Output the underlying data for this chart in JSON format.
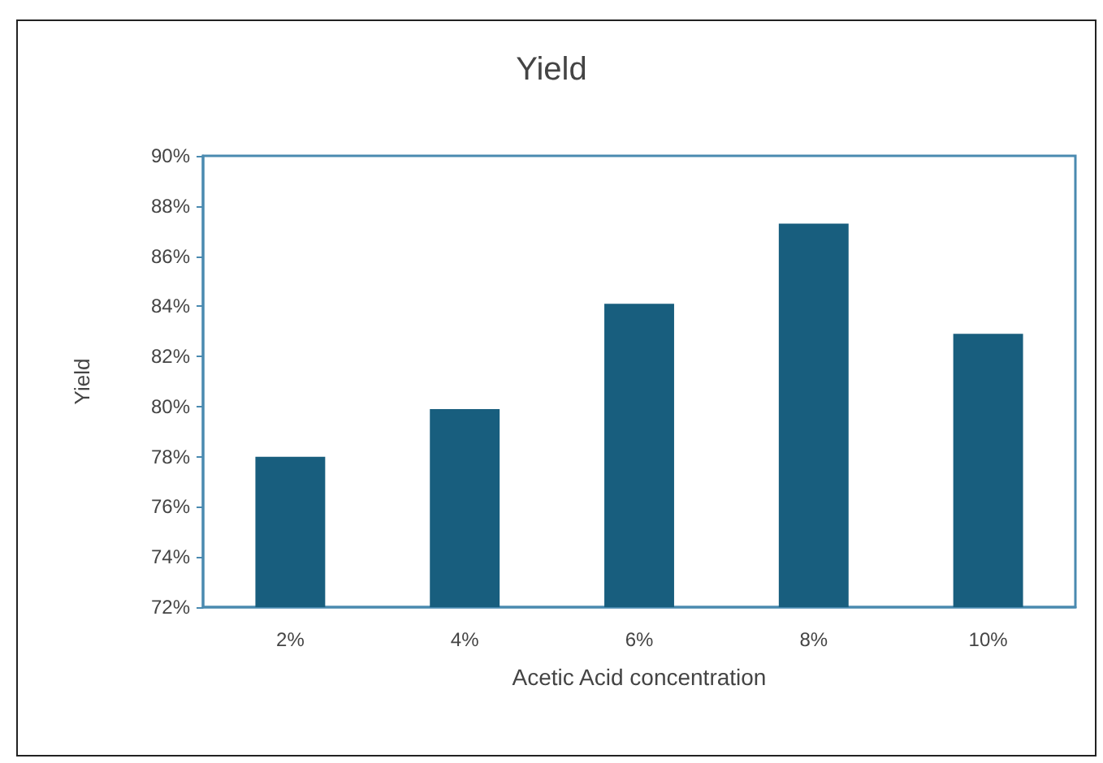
{
  "chart_data": {
    "type": "bar",
    "title": "Yield",
    "xlabel": "Acetic Acid concentration",
    "ylabel": "Yield",
    "categories": [
      "2%",
      "4%",
      "6%",
      "8%",
      "10%"
    ],
    "values": [
      78.0,
      79.9,
      84.1,
      87.3,
      82.9
    ],
    "color": "#185e7e",
    "ylim": [
      72,
      90
    ],
    "yticks": [
      {
        "value": 72,
        "label": "72%"
      },
      {
        "value": 74,
        "label": "74%"
      },
      {
        "value": 76,
        "label": "76%"
      },
      {
        "value": 78,
        "label": "78%"
      },
      {
        "value": 80,
        "label": "80%"
      },
      {
        "value": 82,
        "label": "82%"
      },
      {
        "value": 84,
        "label": "84%"
      },
      {
        "value": 86,
        "label": "86%"
      },
      {
        "value": 88,
        "label": "88%"
      },
      {
        "value": 90,
        "label": "90%"
      }
    ],
    "grid": false
  }
}
